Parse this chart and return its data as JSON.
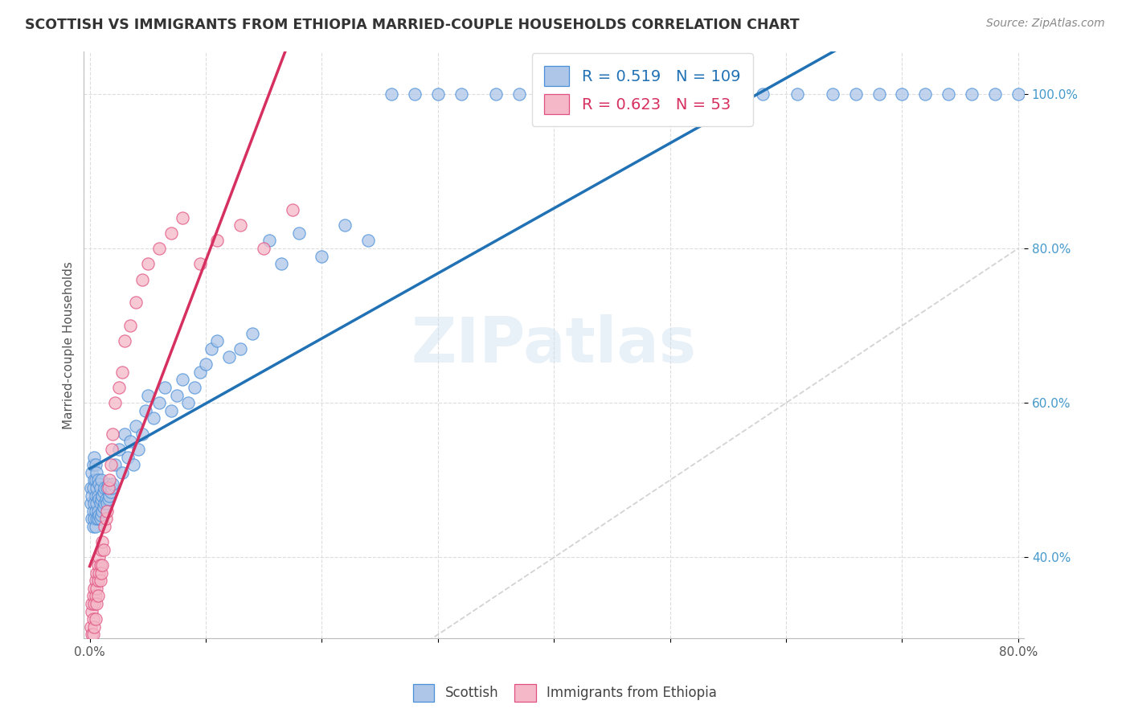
{
  "title": "SCOTTISH VS IMMIGRANTS FROM ETHIOPIA MARRIED-COUPLE HOUSEHOLDS CORRELATION CHART",
  "source": "Source: ZipAtlas.com",
  "ylabel": "Married-couple Households",
  "watermark": "ZIPatlas",
  "legend_scottish_R": 0.519,
  "legend_scottish_N": 109,
  "legend_ethiopia_R": 0.623,
  "legend_ethiopia_N": 53,
  "scottish_color_fill": "#aec6e8",
  "scottish_color_edge": "#4a90d9",
  "ethiopia_color_fill": "#f4b8c8",
  "ethiopia_color_edge": "#e05080",
  "scottish_line_color": "#2171b5",
  "ethiopia_line_color": "#d63060",
  "diagonal_color": "#c8c8c8",
  "background_color": "#ffffff",
  "ytick_color": "#4499cc",
  "scatter_size": 120,
  "scatter_alpha": 0.75,
  "line_width": 2.5
}
